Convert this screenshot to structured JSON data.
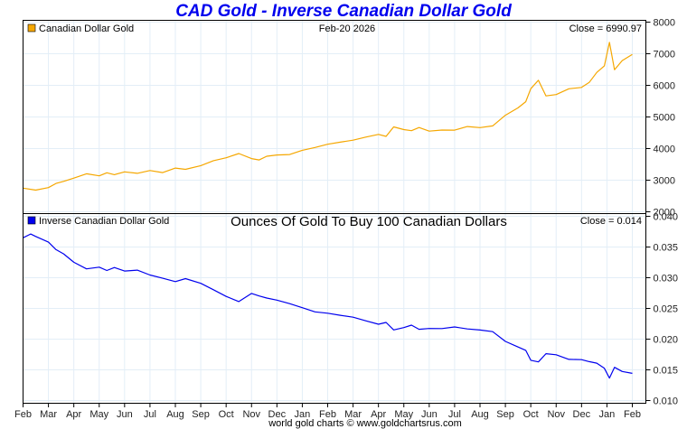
{
  "title": "CAD Gold - Inverse Canadian Dollar Gold",
  "date_label": "Feb-20  2026",
  "footer": "world gold charts © www.goldchartsrus.com",
  "colors": {
    "title": "#0000ee",
    "gold": "#f5a700",
    "blue": "#0000ee",
    "grid": "#e3eef7"
  },
  "chart_data": [
    {
      "type": "line",
      "title": "",
      "legend": "Canadian Dollar Gold",
      "legend_placement": "top-left",
      "close_label": "Close = 6990.97",
      "ylabel": "",
      "ylim": [
        2000,
        8000
      ],
      "yticks": [
        "8000",
        "7000",
        "6000",
        "5000",
        "4000",
        "3000",
        "2000"
      ],
      "yticks_values": [
        8000,
        7000,
        6000,
        5000,
        4000,
        3000,
        2000
      ],
      "grid": true,
      "x_months": 24,
      "series": [
        {
          "name": "Canadian Dollar Gold",
          "x": [
            0,
            0.5,
            1.0,
            1.3,
            1.6,
            2.0,
            2.5,
            3.0,
            3.3,
            3.6,
            4.0,
            4.5,
            5.0,
            5.5,
            6.0,
            6.4,
            7.0,
            7.5,
            8.0,
            8.5,
            9.0,
            9.3,
            9.6,
            10.0,
            10.5,
            11.0,
            11.5,
            12.0,
            12.5,
            13.0,
            13.5,
            14.0,
            14.3,
            14.6,
            15.0,
            15.3,
            15.6,
            16.0,
            16.5,
            17.0,
            17.5,
            18.0,
            18.5,
            19.0,
            19.5,
            19.8,
            20.0,
            20.3,
            20.6,
            21.0,
            21.5,
            22.0,
            22.3,
            22.6,
            22.9,
            23.1,
            23.3,
            23.6,
            24.0
          ],
          "values": [
            2750,
            2700,
            2780,
            2900,
            2950,
            3050,
            3200,
            3150,
            3250,
            3180,
            3250,
            3200,
            3300,
            3250,
            3400,
            3350,
            3450,
            3600,
            3700,
            3850,
            3700,
            3650,
            3750,
            3780,
            3800,
            3950,
            4050,
            4150,
            4200,
            4250,
            4350,
            4450,
            4400,
            4700,
            4600,
            4550,
            4650,
            4550,
            4600,
            4600,
            4700,
            4650,
            4700,
            5050,
            5300,
            5500,
            5900,
            6150,
            5650,
            5700,
            5900,
            5950,
            6100,
            6400,
            6600,
            7350,
            6500,
            6800,
            6990
          ]
        }
      ]
    },
    {
      "type": "line",
      "title": "Ounces Of Gold To Buy 100 Canadian Dollars",
      "legend": "Inverse Canadian Dollar Gold",
      "legend_placement": "top-left",
      "close_label": "Close = 0.014",
      "ylabel": "",
      "ylim": [
        0.01,
        0.04
      ],
      "yticks": [
        "0.040",
        "0.035",
        "0.030",
        "0.025",
        "0.020",
        "0.015",
        "0.010"
      ],
      "yticks_values": [
        0.04,
        0.035,
        0.03,
        0.025,
        0.02,
        0.015,
        0.01
      ],
      "grid": true,
      "xticks": [
        "Feb",
        "Mar",
        "Apr",
        "May",
        "Jun",
        "Jul",
        "Aug",
        "Sep",
        "Oct",
        "Nov",
        "Dec",
        "Jan",
        "Feb",
        "Mar",
        "Apr",
        "May",
        "Jun",
        "Jul",
        "Aug",
        "Sep",
        "Oct",
        "Nov",
        "Dec",
        "Jan",
        "Feb"
      ],
      "series": [
        {
          "name": "Inverse Canadian Dollar Gold",
          "x": [
            0,
            0.3,
            0.5,
            1.0,
            1.3,
            1.6,
            2.0,
            2.5,
            3.0,
            3.3,
            3.6,
            4.0,
            4.5,
            5.0,
            5.5,
            6.0,
            6.4,
            7.0,
            7.5,
            8.0,
            8.5,
            9.0,
            9.3,
            9.6,
            10.0,
            10.5,
            11.0,
            11.5,
            12.0,
            12.5,
            13.0,
            13.5,
            14.0,
            14.3,
            14.6,
            15.0,
            15.3,
            15.6,
            16.0,
            16.5,
            17.0,
            17.5,
            18.0,
            18.5,
            19.0,
            19.5,
            19.8,
            20.0,
            20.3,
            20.6,
            21.0,
            21.5,
            22.0,
            22.3,
            22.6,
            22.9,
            23.1,
            23.3,
            23.6,
            24.0
          ],
          "values": [
            0.0365,
            0.0372,
            0.0368,
            0.0358,
            0.0345,
            0.0338,
            0.0325,
            0.0315,
            0.0318,
            0.0312,
            0.0316,
            0.031,
            0.0312,
            0.0305,
            0.03,
            0.0294,
            0.0298,
            0.029,
            0.028,
            0.027,
            0.0262,
            0.0275,
            0.027,
            0.0266,
            0.0263,
            0.0258,
            0.0252,
            0.0245,
            0.0242,
            0.0238,
            0.0235,
            0.023,
            0.0225,
            0.0228,
            0.0215,
            0.0218,
            0.0222,
            0.0216,
            0.0218,
            0.0218,
            0.022,
            0.0216,
            0.0214,
            0.0212,
            0.0197,
            0.0188,
            0.0182,
            0.0165,
            0.0162,
            0.0176,
            0.0175,
            0.0168,
            0.0167,
            0.0163,
            0.016,
            0.0152,
            0.0137,
            0.0155,
            0.0148,
            0.0144
          ]
        }
      ]
    }
  ]
}
